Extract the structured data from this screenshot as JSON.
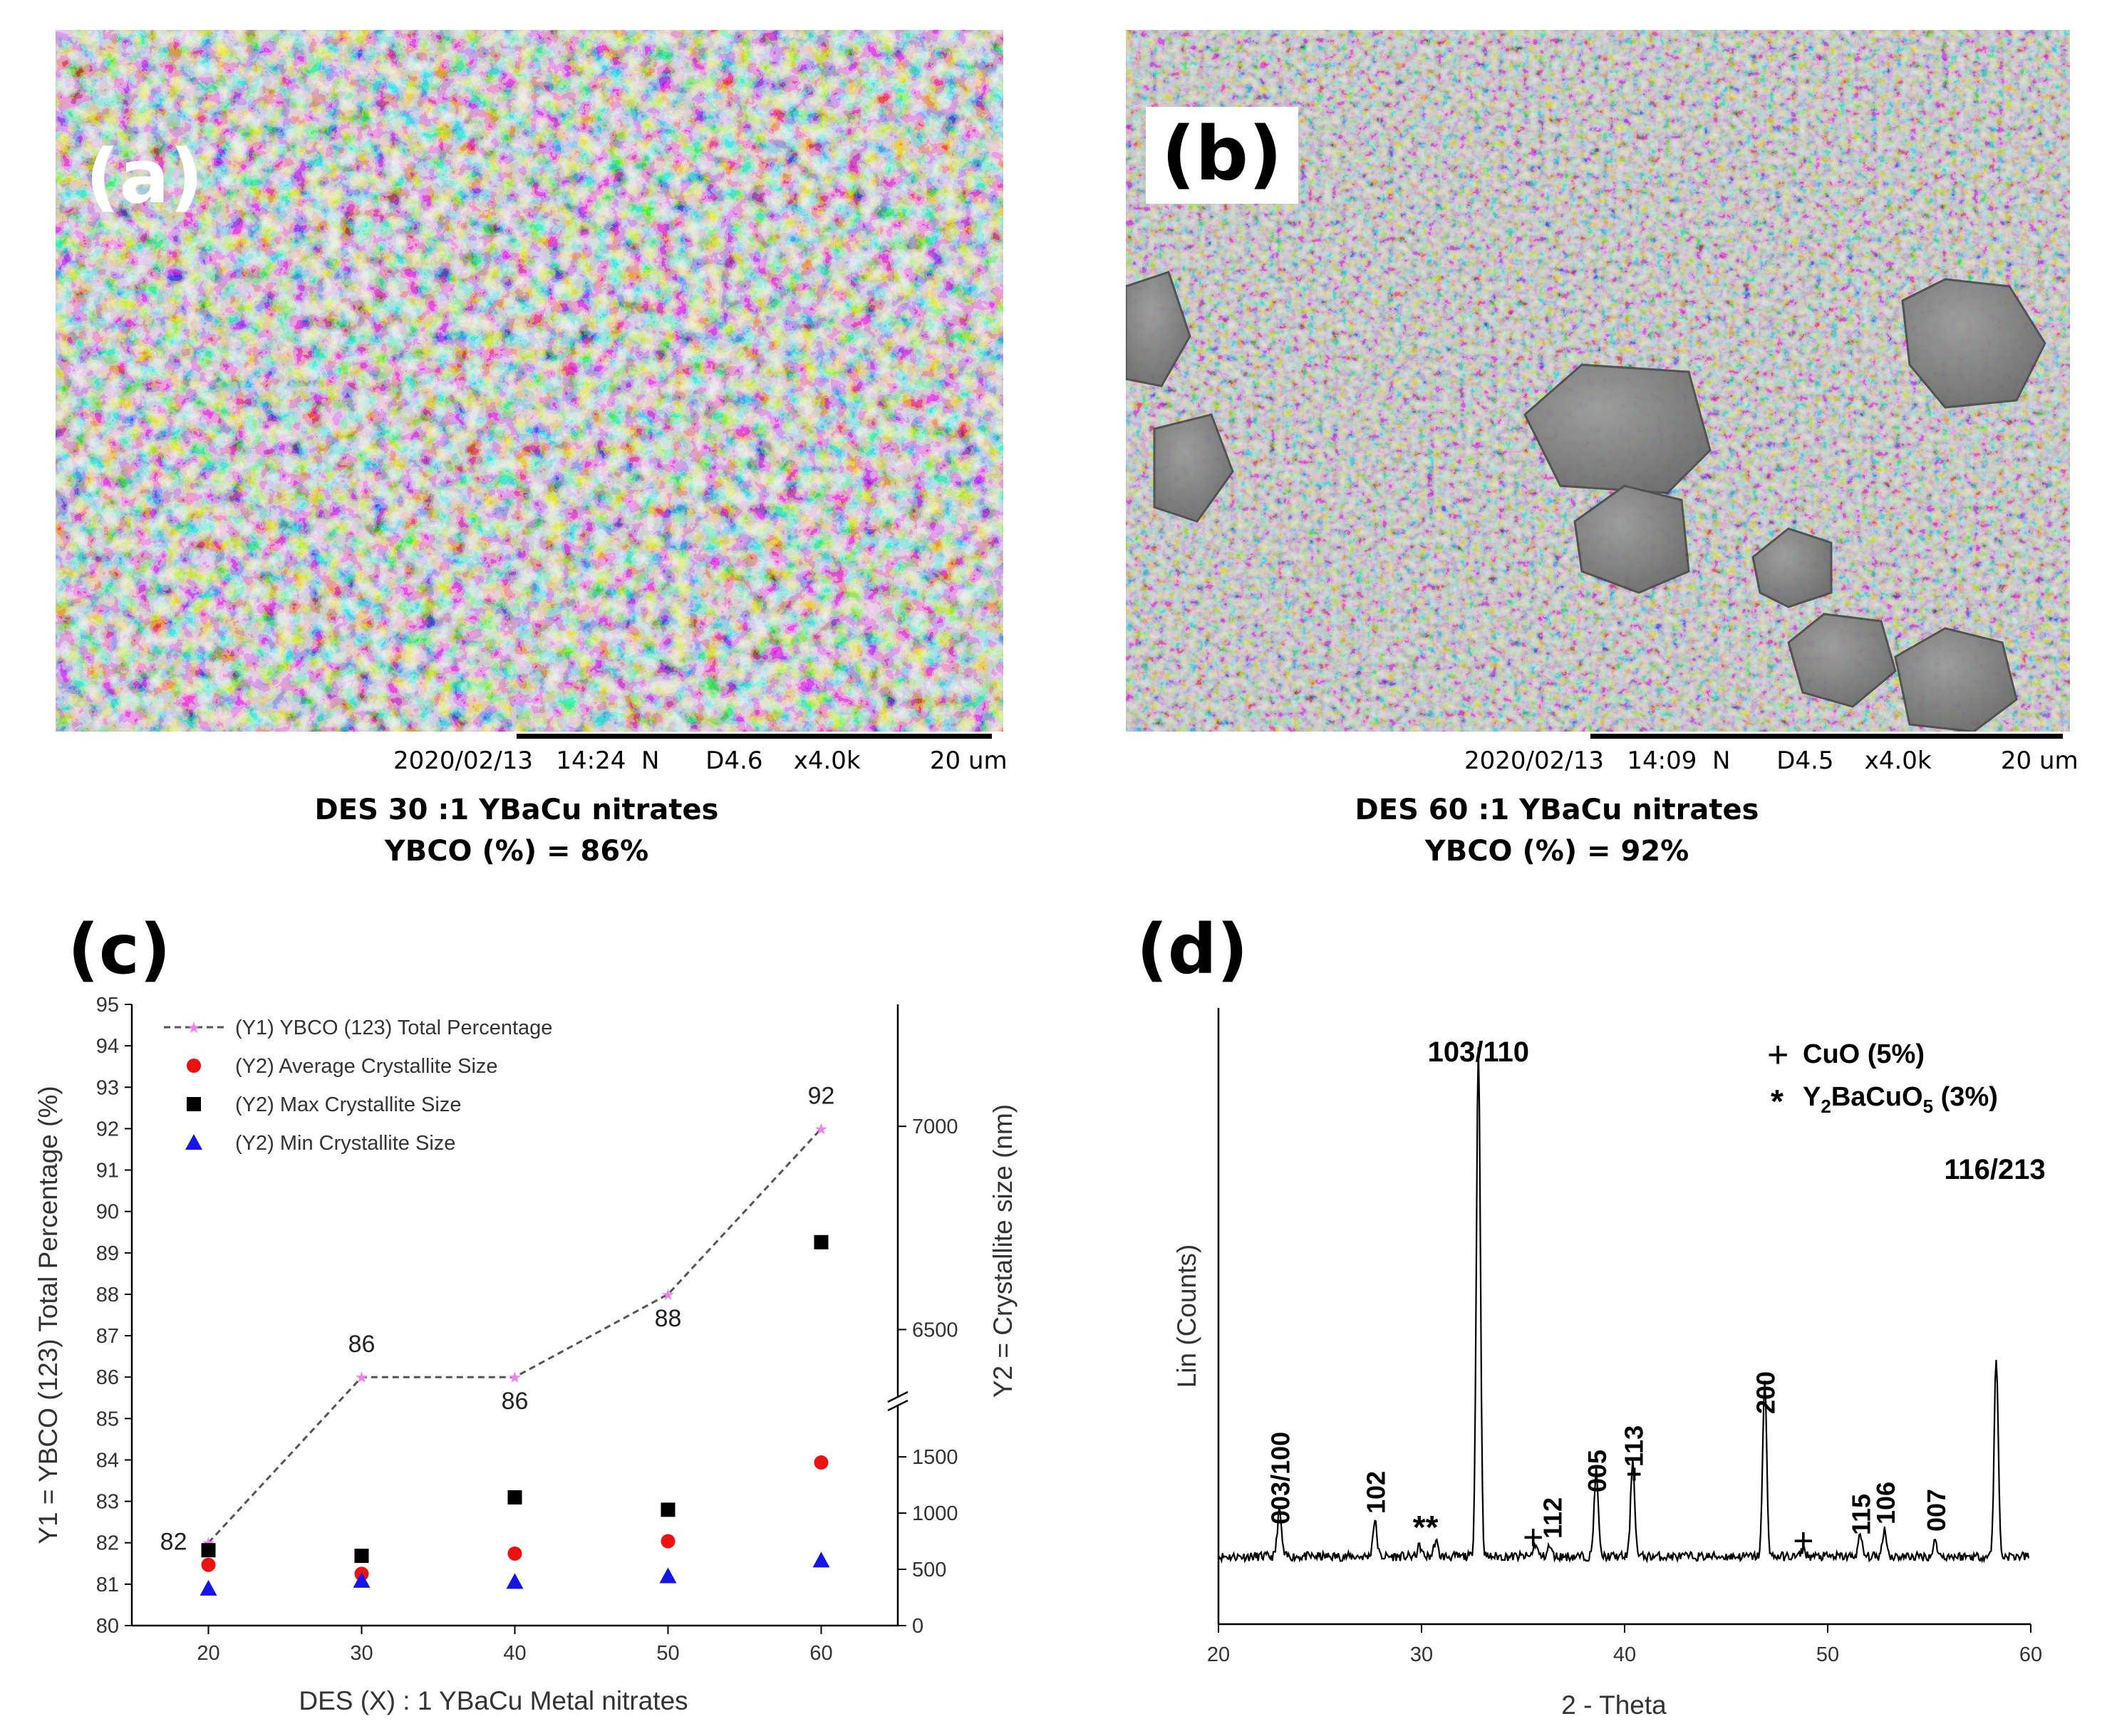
{
  "panel_a": {
    "label": "(a)",
    "meta": "2020/02/13   14:24  N      D4.6    x4.0k         20 um",
    "caption_line1": "DES 30 :1 YBaCu nitrates",
    "caption_line2": "YBCO (%) = 86%"
  },
  "panel_b": {
    "label": "(b)",
    "meta": "2020/02/13   14:09  N      D4.5    x4.0k         20 um",
    "caption_line1": "DES 60 :1 YBaCu nitrates",
    "caption_line2": "YBCO (%) = 92%"
  },
  "panel_c": {
    "label": "(c)"
  },
  "panel_d": {
    "label": "(d)"
  },
  "colors": {
    "pink": "#ee82ee",
    "red": "#ee1111",
    "black": "#000000",
    "blue": "#1515e6",
    "dash": "#555555"
  },
  "chart_data": [
    {
      "type": "scatter",
      "title": "",
      "xlabel": "DES (X) : 1 YBaCu Metal nitrates",
      "ylabel": "Y1 = YBCO (123) Total Percentage (%)",
      "y2label": "Y2 = Crystallite size (nm)",
      "xlim": [
        15,
        65
      ],
      "xticks": [
        20,
        30,
        40,
        50,
        60
      ],
      "ylim": [
        80,
        95
      ],
      "yticks": [
        80,
        81,
        82,
        83,
        84,
        85,
        86,
        87,
        88,
        89,
        90,
        91,
        92,
        93,
        94,
        95
      ],
      "y2_lower": {
        "range": [
          0,
          1900
        ],
        "ticks": [
          0,
          500,
          1000,
          1500
        ]
      },
      "y2_upper": {
        "range": [
          6350,
          7300
        ],
        "ticks": [
          6500,
          7000
        ]
      },
      "x": [
        20,
        30,
        40,
        50,
        60
      ],
      "series": [
        {
          "name": "(Y1) YBCO (123) Total Percentage",
          "axis": "y1",
          "values": [
            82,
            86,
            86,
            88,
            92
          ],
          "labels": [
            "82",
            "86",
            "86",
            "88",
            "92"
          ]
        },
        {
          "name": "(Y2) Average Crystallite Size",
          "axis": "y2",
          "values": [
            540,
            460,
            640,
            750,
            1450
          ]
        },
        {
          "name": "(Y2) Max Crystallite Size",
          "axis": "y2",
          "values": [
            670,
            620,
            1140,
            1030,
            6715
          ]
        },
        {
          "name": "(Y2) Min Crystallite Size",
          "axis": "y2",
          "values": [
            330,
            400,
            390,
            440,
            580
          ]
        }
      ],
      "legend_position": "top-left"
    },
    {
      "type": "line",
      "title": "",
      "xlabel": "2 - Theta",
      "ylabel": "Lin (Counts)",
      "xlim": [
        20,
        60
      ],
      "xticks": [
        20,
        30,
        40,
        50,
        60
      ],
      "peaks": [
        {
          "x": 23.0,
          "h": 0.09
        },
        {
          "x": 27.7,
          "h": 0.07
        },
        {
          "x": 29.9,
          "h": 0.02
        },
        {
          "x": 30.7,
          "h": 0.03
        },
        {
          "x": 32.8,
          "h": 1.0
        },
        {
          "x": 35.6,
          "h": 0.025
        },
        {
          "x": 36.3,
          "h": 0.02
        },
        {
          "x": 38.6,
          "h": 0.17
        },
        {
          "x": 40.4,
          "h": 0.19
        },
        {
          "x": 46.9,
          "h": 0.34
        },
        {
          "x": 48.8,
          "h": 0.015
        },
        {
          "x": 51.6,
          "h": 0.04
        },
        {
          "x": 52.8,
          "h": 0.055
        },
        {
          "x": 55.3,
          "h": 0.03
        },
        {
          "x": 58.3,
          "h": 0.39
        }
      ],
      "annotations": [
        "003/100",
        "102",
        "**",
        "+",
        "112",
        "005",
        "+113",
        "200",
        "+",
        "115",
        "106",
        "007",
        "103/110",
        "116/213"
      ],
      "legend": [
        {
          "symbol": "+",
          "text": "CuO (5%)"
        },
        {
          "symbol": "*",
          "formula": [
            "Y",
            "2",
            "BaCuO",
            "5"
          ],
          "suffix": " (3%)"
        }
      ]
    }
  ]
}
